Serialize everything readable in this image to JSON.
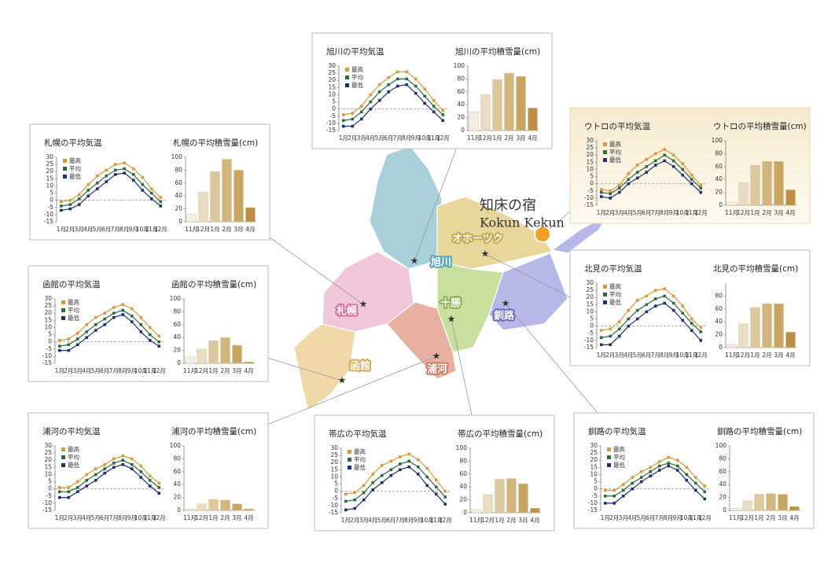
{
  "map": {
    "lodge": "知床の宿",
    "lodge_en": "Kokun Kekun",
    "regions": [
      "旭川",
      "オホーツク",
      "札幌",
      "十勝",
      "釧路",
      "函館",
      "浦河"
    ]
  },
  "chart_data": [
    {
      "type": "line",
      "title": "旭川の平均気温",
      "categories": [
        "1月",
        "2月",
        "3月",
        "4月",
        "5月",
        "6月",
        "7月",
        "8月",
        "9月",
        "10月",
        "11月",
        "12月"
      ],
      "ylim": [
        -15,
        30
      ],
      "yticks": [
        30,
        25,
        20,
        15,
        10,
        5,
        0,
        -5,
        -10,
        -15
      ],
      "zero_line": true,
      "series": [
        {
          "name": "最高",
          "color": "#d79a3c",
          "values": [
            -4,
            -3,
            2,
            10,
            17,
            22,
            26,
            26,
            21,
            14,
            6,
            -1
          ]
        },
        {
          "name": "平均",
          "color": "#2e6b3c",
          "values": [
            -8,
            -7,
            -2,
            5,
            12,
            17,
            21,
            21,
            16,
            9,
            2,
            -4
          ]
        },
        {
          "name": "最低",
          "color": "#1f2f70",
          "values": [
            -12,
            -12,
            -7,
            0,
            6,
            12,
            16,
            17,
            11,
            4,
            -2,
            -8
          ]
        }
      ]
    },
    {
      "type": "bar",
      "title": "旭川の平均積雪量(cm)",
      "categories": [
        "11月",
        "12月",
        "1月",
        "2月",
        "3月",
        "4月"
      ],
      "values": [
        29,
        56,
        79,
        89,
        84,
        35
      ],
      "ylim": [
        0,
        100
      ],
      "yticks": [
        0,
        20,
        40,
        60,
        80,
        100
      ],
      "colors": [
        "#f3eee4",
        "#e8dcc2",
        "#dcc89c",
        "#d2b57c",
        "#c9a563",
        "#bd8e45"
      ]
    },
    {
      "type": "line",
      "title": "札幌の平均気温",
      "categories": [
        "1月",
        "2月",
        "3月",
        "4月",
        "5月",
        "6月",
        "7月",
        "8月",
        "9月",
        "10月",
        "11月",
        "12月"
      ],
      "ylim": [
        -15,
        30
      ],
      "yticks": [
        30,
        25,
        20,
        15,
        10,
        5,
        0,
        -5,
        -10,
        -15
      ],
      "zero_line": true,
      "series": [
        {
          "name": "最高",
          "color": "#d79a3c",
          "values": [
            -1,
            0,
            4,
            11,
            17,
            21,
            25,
            26,
            22,
            16,
            8,
            2
          ]
        },
        {
          "name": "平均",
          "color": "#2e6b3c",
          "values": [
            -4,
            -3,
            1,
            7,
            12,
            17,
            21,
            22,
            18,
            11,
            5,
            -1
          ]
        },
        {
          "name": "最低",
          "color": "#1f2f70",
          "values": [
            -7,
            -6,
            -3,
            3,
            8,
            13,
            18,
            19,
            14,
            7,
            1,
            -4
          ]
        }
      ]
    },
    {
      "type": "bar",
      "title": "札幌の平均積雪量(cm)",
      "categories": [
        "11月",
        "12月",
        "1月",
        "2月",
        "3月",
        "4月"
      ],
      "values": [
        12,
        46,
        78,
        97,
        80,
        22
      ],
      "ylim": [
        0,
        100
      ],
      "yticks": [
        0,
        20,
        40,
        60,
        80,
        100
      ],
      "colors": [
        "#f3eee4",
        "#e8dcc2",
        "#dcc89c",
        "#d2b57c",
        "#c9a563",
        "#bd8e45"
      ]
    },
    {
      "type": "line",
      "title": "ウトロの平均気温",
      "categories": [
        "1月",
        "2月",
        "3月",
        "4月",
        "5月",
        "6月",
        "7月",
        "8月",
        "9月",
        "10月",
        "11月",
        "12月"
      ],
      "ylim": [
        -15,
        30
      ],
      "yticks": [
        30,
        25,
        20,
        15,
        10,
        5,
        0,
        -5,
        -10,
        -15
      ],
      "zero_line": true,
      "series": [
        {
          "name": "最高",
          "color": "#d79a3c",
          "values": [
            -4,
            -5,
            -1,
            7,
            13,
            17,
            21,
            24,
            20,
            14,
            6,
            -1
          ]
        },
        {
          "name": "平均",
          "color": "#2e6b3c",
          "values": [
            -6,
            -7,
            -3,
            3,
            8,
            12,
            16,
            20,
            16,
            10,
            3,
            -3
          ]
        },
        {
          "name": "最低",
          "color": "#1f2f70",
          "values": [
            -9,
            -10,
            -6,
            0,
            4,
            8,
            13,
            16,
            12,
            6,
            0,
            -6
          ]
        }
      ]
    },
    {
      "type": "bar",
      "title": "ウトロの平均積雪量(cm)",
      "categories": [
        "11月",
        "12月",
        "1月",
        "2月",
        "3月",
        "4月"
      ],
      "values": [
        5,
        35,
        62,
        68,
        68,
        24
      ],
      "ylim": [
        0,
        100
      ],
      "yticks": [
        0,
        20,
        40,
        60,
        80,
        100
      ],
      "colors": [
        "#f3eee4",
        "#e8dcc2",
        "#dcc89c",
        "#d2b57c",
        "#c9a563",
        "#bd8e45"
      ]
    },
    {
      "type": "line",
      "title": "北見の平均気温",
      "categories": [
        "1月",
        "2月",
        "3月",
        "4月",
        "5月",
        "6月",
        "7月",
        "8月",
        "9月",
        "10月",
        "11月",
        "12月"
      ],
      "ylim": [
        -15,
        30
      ],
      "yticks": [
        30,
        25,
        20,
        15,
        10,
        5,
        0,
        -5,
        -10,
        -15
      ],
      "zero_line": true,
      "series": [
        {
          "name": "最高",
          "color": "#d79a3c",
          "values": [
            -3,
            -2,
            3,
            11,
            18,
            21,
            25,
            26,
            21,
            14,
            5,
            -1
          ]
        },
        {
          "name": "平均",
          "color": "#2e6b3c",
          "values": [
            -8,
            -7,
            -2,
            5,
            11,
            15,
            19,
            21,
            16,
            9,
            2,
            -4
          ]
        },
        {
          "name": "最低",
          "color": "#1f2f70",
          "values": [
            -13,
            -13,
            -7,
            0,
            5,
            10,
            14,
            16,
            11,
            4,
            -3,
            -10
          ]
        }
      ]
    },
    {
      "type": "bar",
      "title": "北見の平均積雪量(cm)",
      "categories": [
        "11月",
        "12月",
        "1月",
        "2月",
        "3月",
        "4月"
      ],
      "values": [
        5,
        37,
        62,
        68,
        68,
        24
      ],
      "ylim": [
        0,
        100
      ],
      "yticks": [
        0,
        20,
        40,
        60,
        80
      ],
      "colors": [
        "#f3eee4",
        "#e8dcc2",
        "#dcc89c",
        "#d2b57c",
        "#c9a563",
        "#bd8e45"
      ]
    },
    {
      "type": "line",
      "title": "函館の平均気温",
      "categories": [
        "1月",
        "2月",
        "3月",
        "4月",
        "5月",
        "6月",
        "7月",
        "8月",
        "9月",
        "10月",
        "11月",
        "12月"
      ],
      "ylim": [
        -15,
        30
      ],
      "yticks": [
        30,
        25,
        20,
        15,
        10,
        5,
        0,
        -5,
        -10,
        -15
      ],
      "zero_line": true,
      "series": [
        {
          "name": "最高",
          "color": "#d79a3c",
          "values": [
            1,
            2,
            6,
            12,
            17,
            20,
            24,
            26,
            23,
            17,
            10,
            4
          ]
        },
        {
          "name": "平均",
          "color": "#2e6b3c",
          "values": [
            -3,
            -2,
            2,
            7,
            12,
            16,
            20,
            22,
            18,
            12,
            5,
            0
          ]
        },
        {
          "name": "最低",
          "color": "#1f2f70",
          "values": [
            -6,
            -6,
            -2,
            3,
            8,
            12,
            17,
            19,
            14,
            7,
            1,
            -3
          ]
        }
      ]
    },
    {
      "type": "bar",
      "title": "函館の平均積雪量(cm)",
      "categories": [
        "11月",
        "12月",
        "1月",
        "2月",
        "3月",
        "4月"
      ],
      "values": [
        10,
        22,
        35,
        40,
        28,
        2
      ],
      "ylim": [
        0,
        100
      ],
      "yticks": [
        0,
        20,
        40,
        60,
        80,
        100
      ],
      "colors": [
        "#f3eee4",
        "#e8dcc2",
        "#dcc89c",
        "#d2b57c",
        "#c9a563",
        "#bd8e45"
      ]
    },
    {
      "type": "line",
      "title": "浦河の平均気温",
      "categories": [
        "1月",
        "2月",
        "3月",
        "4月",
        "5月",
        "6月",
        "7月",
        "8月",
        "9月",
        "10月",
        "11月",
        "12月"
      ],
      "ylim": [
        -15,
        30
      ],
      "yticks": [
        30,
        25,
        20,
        15,
        10,
        5,
        0,
        -5,
        -10,
        -15
      ],
      "zero_line": true,
      "series": [
        {
          "name": "最高",
          "color": "#d79a3c",
          "values": [
            1,
            1,
            5,
            10,
            14,
            17,
            21,
            23,
            21,
            16,
            9,
            4
          ]
        },
        {
          "name": "平均",
          "color": "#2e6b3c",
          "values": [
            -2,
            -2,
            1,
            6,
            10,
            14,
            18,
            20,
            17,
            12,
            6,
            1
          ]
        },
        {
          "name": "最低",
          "color": "#1f2f70",
          "values": [
            -6,
            -6,
            -2,
            2,
            6,
            11,
            15,
            17,
            14,
            8,
            2,
            -3
          ]
        }
      ]
    },
    {
      "type": "bar",
      "title": "浦河の平均積雪量(cm)",
      "categories": [
        "11月",
        "12月",
        "1月",
        "2月",
        "3月",
        "4月"
      ],
      "values": [
        2,
        10,
        17,
        16,
        10,
        2
      ],
      "ylim": [
        0,
        100
      ],
      "yticks": [
        0,
        20,
        40,
        60,
        80,
        100
      ],
      "colors": [
        "#f3eee4",
        "#e8dcc2",
        "#dcc89c",
        "#d2b57c",
        "#c9a563",
        "#bd8e45"
      ]
    },
    {
      "type": "line",
      "title": "帯広の平均気温",
      "categories": [
        "1月",
        "2月",
        "3月",
        "4月",
        "5月",
        "6月",
        "7月",
        "8月",
        "9月",
        "10月",
        "11月",
        "12月"
      ],
      "ylim": [
        -15,
        30
      ],
      "yticks": [
        30,
        25,
        20,
        15,
        10,
        5,
        0,
        -5,
        -10,
        -15
      ],
      "zero_line": true,
      "series": [
        {
          "name": "最高",
          "color": "#d79a3c",
          "values": [
            -2,
            -1,
            4,
            12,
            18,
            21,
            24,
            26,
            22,
            16,
            8,
            0
          ]
        },
        {
          "name": "平均",
          "color": "#2e6b3c",
          "values": [
            -7,
            -6,
            -1,
            6,
            11,
            15,
            19,
            21,
            17,
            10,
            3,
            -4
          ]
        },
        {
          "name": "最低",
          "color": "#1f2f70",
          "values": [
            -13,
            -12,
            -6,
            1,
            6,
            11,
            15,
            17,
            12,
            4,
            -2,
            -9
          ]
        }
      ]
    },
    {
      "type": "bar",
      "title": "帯広の平均積雪量(cm)",
      "categories": [
        "11月",
        "12月",
        "1月",
        "2月",
        "3月",
        "4月"
      ],
      "values": [
        5,
        28,
        52,
        53,
        45,
        7
      ],
      "ylim": [
        0,
        100
      ],
      "yticks": [
        0,
        20,
        40,
        60,
        80,
        100
      ],
      "colors": [
        "#f3eee4",
        "#e8dcc2",
        "#dcc89c",
        "#d2b57c",
        "#c9a563",
        "#bd8e45"
      ]
    },
    {
      "type": "line",
      "title": "釧路の平均気温",
      "categories": [
        "1月",
        "2月",
        "3月",
        "4月",
        "5月",
        "6月",
        "7月",
        "8月",
        "9月",
        "10月",
        "11月",
        "12月"
      ],
      "ylim": [
        -15,
        30
      ],
      "yticks": [
        30,
        25,
        20,
        15,
        10,
        5,
        0,
        -5,
        -10,
        -15
      ],
      "zero_line": true,
      "series": [
        {
          "name": "最高",
          "color": "#d79a3c",
          "values": [
            -1,
            -1,
            3,
            8,
            12,
            15,
            19,
            22,
            20,
            15,
            8,
            2
          ]
        },
        {
          "name": "平均",
          "color": "#2e6b3c",
          "values": [
            -5,
            -5,
            -1,
            4,
            8,
            12,
            16,
            18,
            16,
            10,
            4,
            -2
          ]
        },
        {
          "name": "最低",
          "color": "#1f2f70",
          "values": [
            -10,
            -10,
            -5,
            0,
            5,
            9,
            13,
            16,
            13,
            6,
            -1,
            -7
          ]
        }
      ]
    },
    {
      "type": "bar",
      "title": "釧路の平均積雪量(cm)",
      "categories": [
        "11月",
        "12月",
        "1月",
        "2月",
        "3月",
        "4月"
      ],
      "values": [
        3,
        15,
        25,
        26,
        25,
        6
      ],
      "ylim": [
        0,
        100
      ],
      "yticks": [
        0,
        20,
        40,
        60,
        80,
        100
      ],
      "colors": [
        "#f3eee4",
        "#e8dcc2",
        "#dcc89c",
        "#d2b57c",
        "#c9a563",
        "#bd8e45"
      ]
    }
  ]
}
